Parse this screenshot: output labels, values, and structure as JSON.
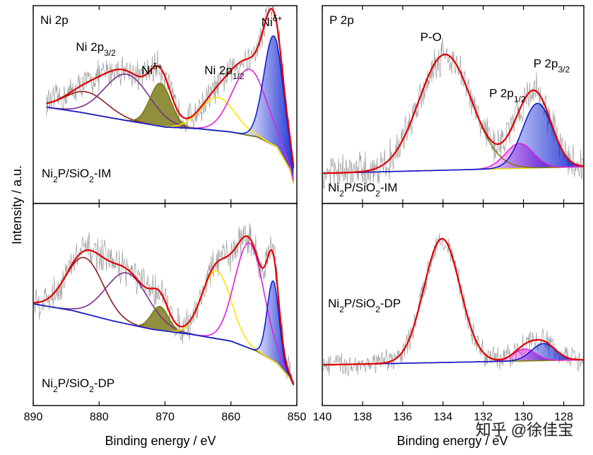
{
  "chart_data": [
    {
      "type": "line",
      "id": "ni-im",
      "title": "Ni 2p",
      "sample_label": {
        "pre": "Ni",
        "sub1": "2",
        "mid": "P/SiO",
        "sub2": "2",
        "post": "-IM"
      },
      "xlabel": "Binding energy / eV",
      "ylabel": "Intensity / a.u.",
      "xlim": [
        890,
        850
      ],
      "ylim": [
        0,
        100
      ],
      "xticks": [
        890,
        880,
        870,
        860,
        850
      ],
      "annotations": [
        {
          "text": "Ni 2p",
          "sub": "3/2",
          "sup": "",
          "x": 880.5,
          "y": 82
        },
        {
          "text": "Ni",
          "sub": "",
          "sup": "δ+",
          "x": 872.0,
          "y": 68
        },
        {
          "text": "Ni 2p",
          "sub": "1/2",
          "sup": "",
          "x": 861.0,
          "y": 68
        },
        {
          "text": "Ni",
          "sub": "",
          "sup": "δ+",
          "x": 853.8,
          "y": 97
        }
      ],
      "background": {
        "x": [
          888,
          883,
          876,
          870,
          865,
          860,
          856,
          853,
          851,
          850.5
        ],
        "y": [
          48,
          45,
          40,
          36,
          35,
          33,
          30,
          24,
          10,
          2
        ]
      },
      "components": [
        {
          "name": "Ni 2p3/2 satellite",
          "color": "#8b1a1a",
          "center": 882.0,
          "width": 3.2,
          "height": 13,
          "fill": false
        },
        {
          "name": "Ni 2p3/2 (Ni2+)",
          "color": "#7b2e8e",
          "center": 875.8,
          "width": 3.4,
          "height": 28,
          "fill": false
        },
        {
          "name": "Ni 2p3/2 (Ni δ+)",
          "color": "#7b7b1a",
          "center": 870.7,
          "width": 1.6,
          "height": 26,
          "fill": true
        },
        {
          "name": "Ni 2p1/2 satellite",
          "color": "#ffe600",
          "center": 862.0,
          "width": 2.6,
          "height": 20,
          "fill": false
        },
        {
          "name": "Ni 2p1/2 (Ni2+)",
          "color": "#e020e0",
          "center": 857.2,
          "width": 2.6,
          "height": 40,
          "fill": false
        },
        {
          "name": "Ni 2p1/2 (Ni δ+)",
          "color": "#0a1fd0",
          "center": 853.5,
          "width": 1.5,
          "height": 66,
          "fill": true
        }
      ],
      "envelope_color": "#e00000",
      "raw_color": "#9a9a9a",
      "noise": 9
    },
    {
      "type": "line",
      "id": "ni-dp",
      "title": "",
      "sample_label": {
        "pre": "Ni",
        "sub1": "2",
        "mid": "P/SiO",
        "sub2": "2",
        "post": "-DP"
      },
      "xlabel": "Binding energy / eV",
      "ylabel": "Intensity / a.u.",
      "xlim": [
        890,
        850
      ],
      "ylim": [
        0,
        100
      ],
      "xticks": [
        890,
        880,
        870,
        860,
        850
      ],
      "annotations": [],
      "background": {
        "x": [
          890,
          884,
          878,
          872,
          866,
          860,
          856,
          853,
          851,
          850.5
        ],
        "y": [
          50,
          46,
          40,
          35,
          32,
          28,
          22,
          15,
          6,
          2
        ]
      },
      "components": [
        {
          "name": "Ni 2p3/2 satellite",
          "color": "#8b1a1a",
          "center": 882.2,
          "width": 2.8,
          "height": 33,
          "fill": false
        },
        {
          "name": "Ni 2p3/2 (Ni2+)",
          "color": "#7b2e8e",
          "center": 875.8,
          "width": 3.2,
          "height": 30,
          "fill": false
        },
        {
          "name": "Ni 2p3/2 (Ni δ+)",
          "color": "#7b7b1a",
          "center": 870.8,
          "width": 1.3,
          "height": 14,
          "fill": true
        },
        {
          "name": "Ni 2p1/2 satellite",
          "color": "#ffe600",
          "center": 862.2,
          "width": 2.2,
          "height": 40,
          "fill": false
        },
        {
          "name": "Ni 2p1/2 (Ni2+)",
          "color": "#e020e0",
          "center": 857.2,
          "width": 2.2,
          "height": 62,
          "fill": false
        },
        {
          "name": "Ni 2p1/2 (Ni δ+)",
          "color": "#0a1fd0",
          "center": 853.6,
          "width": 0.9,
          "height": 47,
          "fill": true
        }
      ],
      "envelope_color": "#e00000",
      "raw_color": "#9a9a9a",
      "noise": 10
    },
    {
      "type": "line",
      "id": "p-im",
      "title": "P 2p",
      "sample_label": {
        "pre": "Ni",
        "sub1": "2",
        "mid": "P/SiO",
        "sub2": "2",
        "post": "-IM"
      },
      "xlabel": "Binding energy / eV",
      "ylabel": "Intensity / a.u.",
      "xlim": [
        140,
        127
      ],
      "ylim": [
        0,
        100
      ],
      "xticks": [
        140,
        138,
        136,
        134,
        132,
        130,
        128
      ],
      "annotations": [
        {
          "text": "P-O",
          "sub": "",
          "sup": "",
          "x": 134.6,
          "y": 88
        },
        {
          "text": "P 2p",
          "sub": "1/2",
          "sup": "",
          "x": 130.8,
          "y": 54
        },
        {
          "text": "P 2p",
          "sub": "3/2",
          "sup": "",
          "x": 128.6,
          "y": 72
        }
      ],
      "background": {
        "x": [
          140,
          127
        ],
        "y": [
          8,
          12
        ]
      },
      "components": [
        {
          "name": "P-O",
          "color": "#7b7b1a",
          "center": 133.9,
          "width": 1.3,
          "height": 70,
          "fill": false
        },
        {
          "name": "P 2p1/2",
          "color": "#e020e0",
          "center": 130.2,
          "width": 0.7,
          "height": 15,
          "fill": true
        },
        {
          "name": "P 2p3/2",
          "color": "#0a1fd0",
          "center": 129.3,
          "width": 0.75,
          "height": 39,
          "fill": true
        }
      ],
      "envelope_color": "#e00000",
      "raw_color": "#9a9a9a",
      "noise": 11
    },
    {
      "type": "line",
      "id": "p-dp",
      "title": "",
      "sample_label": {
        "pre": "Ni",
        "sub1": "2",
        "mid": "P/SiO",
        "sub2": "2",
        "post": "-DP"
      },
      "xlabel": "Binding energy / eV",
      "ylabel": "Intensity / a.u.",
      "xlim": [
        140,
        127
      ],
      "ylim": [
        0,
        100
      ],
      "xticks": [
        140,
        138,
        136,
        134,
        132,
        130,
        128
      ],
      "annotations": [],
      "background": {
        "x": [
          140,
          127
        ],
        "y": [
          14,
          17
        ]
      },
      "components": [
        {
          "name": "P-O",
          "color": "#7b7b1a",
          "center": 134.05,
          "width": 0.9,
          "height": 73,
          "fill": false
        },
        {
          "name": "P 2p1/2",
          "color": "#e020e0",
          "center": 129.95,
          "width": 0.55,
          "height": 7,
          "fill": true
        },
        {
          "name": "P 2p3/2",
          "color": "#0a1fd0",
          "center": 129.0,
          "width": 0.6,
          "height": 10,
          "fill": true
        }
      ],
      "envelope_color": "#e00000",
      "raw_color": "#9a9a9a",
      "noise": 7
    }
  ],
  "watermark": "知乎 @徐佳宝"
}
